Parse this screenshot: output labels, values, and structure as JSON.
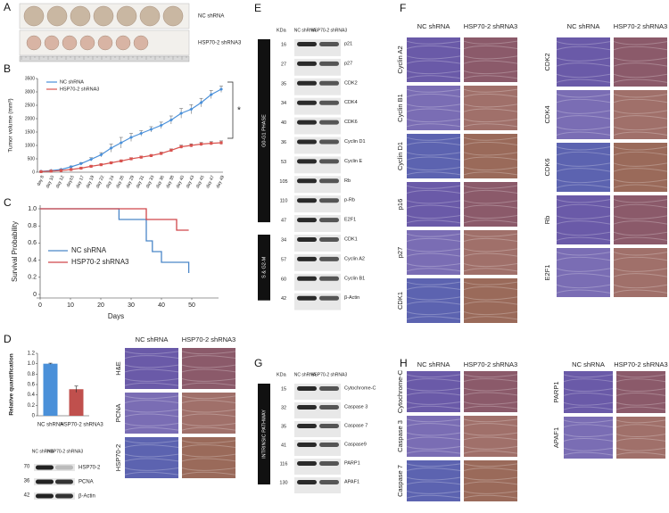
{
  "panel_labels": [
    "A",
    "B",
    "C",
    "D",
    "E",
    "F",
    "G",
    "H"
  ],
  "panel_a": {
    "labels": [
      "NC shRNA",
      "HSP70-2 shRNA3"
    ]
  },
  "chart_data": [
    {
      "type": "line",
      "ylabel": "Tumor volume (mm³)",
      "annotation": "*",
      "categories": [
        "day 8",
        "day 10",
        "day 12",
        "day15",
        "day 17",
        "day 19",
        "day 22",
        "day 24",
        "day 26",
        "day 29",
        "day 31",
        "day 33",
        "day 36",
        "day 38",
        "day 40",
        "day 43",
        "day 45",
        "day 47",
        "day 49"
      ],
      "series": [
        {
          "name": "NC shRNA",
          "color": "#4a90d9",
          "marker": "diamond",
          "values": [
            30,
            60,
            100,
            200,
            320,
            480,
            650,
            900,
            1100,
            1300,
            1450,
            1600,
            1750,
            1950,
            2200,
            2350,
            2600,
            2900,
            3100
          ],
          "errors": [
            10,
            15,
            20,
            30,
            40,
            60,
            80,
            150,
            200,
            150,
            100,
            100,
            120,
            150,
            180,
            170,
            160,
            150,
            120
          ]
        },
        {
          "name": "HSP70-2 shRNA3",
          "color": "#d9534f",
          "marker": "square",
          "values": [
            20,
            40,
            60,
            100,
            150,
            220,
            280,
            350,
            420,
            500,
            560,
            620,
            700,
            820,
            950,
            1000,
            1050,
            1080,
            1100
          ],
          "errors": [
            5,
            8,
            10,
            15,
            20,
            30,
            30,
            40,
            40,
            40,
            40,
            40,
            50,
            50,
            60,
            60,
            60,
            60,
            70
          ]
        }
      ],
      "ylim": [
        0,
        3500
      ],
      "yticks": [
        0,
        500,
        1000,
        1500,
        2000,
        2500,
        3000,
        3500
      ]
    },
    {
      "type": "step",
      "ylabel": "Survival Probability",
      "xlabel": "Days",
      "series": [
        {
          "name": "NC shRNA",
          "color": "#4a86c8",
          "x": [
            0,
            26,
            26,
            35,
            35,
            37,
            37,
            40,
            40,
            49,
            49
          ],
          "values": [
            1,
            1,
            0.875,
            0.875,
            0.625,
            0.625,
            0.5,
            0.5,
            0.375,
            0.375,
            0.25
          ]
        },
        {
          "name": "HSP70-2 shRNA3",
          "color": "#d0464a",
          "x": [
            0,
            35,
            35,
            45,
            45,
            49
          ],
          "values": [
            1,
            1,
            0.875,
            0.875,
            0.75,
            0.75
          ]
        }
      ],
      "xlim": [
        0,
        50
      ],
      "xticks": [
        0,
        10,
        20,
        30,
        40,
        50
      ],
      "ylim": [
        0,
        1
      ],
      "yticks": [
        0,
        0.2,
        0.4,
        0.6,
        0.8,
        {
          "value": 1,
          "label": "1.0"
        }
      ]
    },
    {
      "type": "bar",
      "ylabel": "Relative quantification",
      "categories": [
        "NC shRNA",
        "HSP70-2 shRNA3"
      ],
      "values": [
        1,
        0.51
      ],
      "errors": [
        0.01,
        0.06
      ],
      "colors": [
        "#4a90d9",
        "#c0504d"
      ],
      "ylim": [
        0,
        1.2
      ],
      "yticks": [
        0,
        0.2,
        0.4,
        0.6,
        0.8,
        {
          "value": 1,
          "label": "1.0"
        },
        1.2
      ]
    }
  ],
  "blot_d": {
    "lanes": [
      "NC shRNA",
      "HSP70-2 shRNA3"
    ],
    "rows": [
      {
        "kda": 70,
        "label": "HSP70-2"
      },
      {
        "kda": 36,
        "label": "PCNA"
      },
      {
        "kda": 42,
        "label": "β-Actin"
      }
    ]
  },
  "blot_e": {
    "kda_header": "KDa",
    "lanes": [
      "NC shRNA",
      "HSP70-2 shRNA3"
    ],
    "groups": [
      "G0-G1 PHASE",
      "S & G2-M"
    ],
    "rows": [
      {
        "kda": 16,
        "label": "p21"
      },
      {
        "kda": 27,
        "label": "p27"
      },
      {
        "kda": 35,
        "label": "CDK2"
      },
      {
        "kda": 34,
        "label": "CDK4"
      },
      {
        "kda": 40,
        "label": "CDK6"
      },
      {
        "kda": 36,
        "label": "Cyclin D1"
      },
      {
        "kda": 53,
        "label": "Cyclin E"
      },
      {
        "kda": 105,
        "label": "Rb"
      },
      {
        "kda": 110,
        "label": "p-Rb"
      },
      {
        "kda": 47,
        "label": "E2F1"
      },
      {
        "kda": 34,
        "label": "CDK1"
      },
      {
        "kda": 57,
        "label": "Cyclin A2"
      },
      {
        "kda": 60,
        "label": "Cyclin B1"
      },
      {
        "kda": 42,
        "label": "β-Actin"
      }
    ]
  },
  "blot_g": {
    "kda_header": "KDa",
    "lanes": [
      "NC shRNA",
      "HSP70-2 shRNA3"
    ],
    "groups": [
      "INTRINSIC PATHWAY"
    ],
    "rows": [
      {
        "kda": 15,
        "label": "Cytochrome-C"
      },
      {
        "kda": 32,
        "label": "Caspase 3"
      },
      {
        "kda": 35,
        "label": "Caspase 7"
      },
      {
        "kda": 41,
        "label": "Caspase9"
      },
      {
        "kda": 116,
        "label": "PARP1"
      },
      {
        "kda": 130,
        "label": "APAF1"
      }
    ]
  },
  "ihc_d": {
    "columns": [
      "NC shRNA",
      "HSP70-2 shRNA3"
    ],
    "rows": [
      "H&E",
      "PCNA",
      "HSP70-2"
    ]
  },
  "ihc_f_left": {
    "columns": [
      "NC shRNA",
      "HSP70-2 shRNA3"
    ],
    "rows": [
      "Cyclin A2",
      "Cyclin B1",
      "Cyclin D1",
      "p16",
      "p27",
      "CDK1"
    ]
  },
  "ihc_f_right": {
    "columns": [
      "NC shRNA",
      "HSP70-2 shRNA3"
    ],
    "rows": [
      "CDK2",
      "CDK4",
      "CDK6",
      "Rb",
      "E2F1"
    ]
  },
  "ihc_h_left": {
    "columns": [
      "NC shRNA",
      "HSP70-2 shRNA3"
    ],
    "rows": [
      "Cytochrome-C",
      "Caspase 3",
      "Caspase 7"
    ]
  },
  "ihc_h_right": {
    "columns": [
      "NC shRNA",
      "HSP70-2 shRNA3"
    ],
    "rows": [
      "PARP1",
      "APAF1"
    ]
  }
}
